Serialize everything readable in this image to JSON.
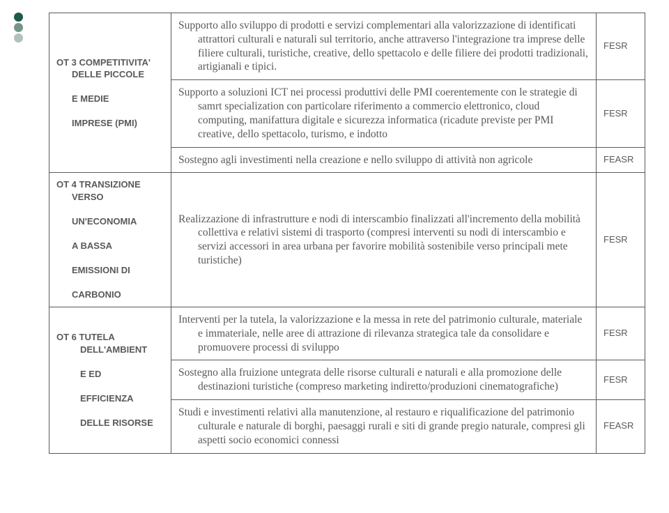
{
  "dots": [
    "#1e5a4a",
    "#739588",
    "#b0c2bb"
  ],
  "rows": [
    {
      "cat": {
        "rowspan": 3,
        "lines": [
          "OT 3 COMPETITIVITA'",
          "DELLE PICCOLE",
          "E MEDIE",
          "IMPRESE (PMI)"
        ],
        "padclass": [
          "",
          "l2",
          "l2",
          "l2"
        ]
      },
      "body": "Supporto allo sviluppo di prodotti e servizi complementari alla valorizzazione di identificati attrattori culturali e naturali sul territorio, anche attraverso l'integrazione tra imprese delle filiere culturali, turistiche, creative, dello spettacolo e delle filiere dei prodotti tradizionali, artigianali e tipici.",
      "tag": "FESR"
    },
    {
      "body": "Supporto a soluzioni ICT nei processi produttivi delle PMI coerentemente con le strategie di samrt specialization con particolare riferimento a commercio elettronico, cloud computing, manifattura digitale e sicurezza informatica (ricadute previste per PMI creative, dello spettacolo, turismo, e indotto",
      "tag": "FESR"
    },
    {
      "body": "Sostegno agli investimenti nella creazione e nello sviluppo di attività non agricole",
      "tag": "FEASR"
    },
    {
      "cat": {
        "rowspan": 1,
        "lines": [
          "OT 4 TRANSIZIONE",
          "VERSO",
          "UN'ECONOMIA",
          "A BASSA",
          "EMISSIONI DI",
          "CARBONIO"
        ],
        "padclass": [
          "",
          "l2",
          "l2",
          "l2",
          "l2",
          "l2"
        ]
      },
      "body": "Realizzazione di infrastrutture e nodi di interscambio finalizzati all'incremento della mobilità collettiva e relativi sistemi di trasporto (compresi interventi su nodi di interscambio e servizi accessori in area urbana per favorire mobilità sostenibile verso principali mete turistiche)",
      "tag": "FESR"
    },
    {
      "cat": {
        "rowspan": 3,
        "lines": [
          "OT 6 TUTELA",
          "DELL'AMBIENT",
          "E ED",
          "EFFICIENZA",
          "DELLE RISORSE"
        ],
        "padclass": [
          "",
          "l3",
          "l3",
          "l3",
          "l3"
        ]
      },
      "body": "Interventi per la tutela, la valorizzazione e la messa in rete del patrimonio culturale, materiale e immateriale, nelle aree di attrazione di rilevanza strategica tale da consolidare e promuovere processi di sviluppo",
      "tag": "FESR"
    },
    {
      "body": "Sostegno alla fruizione untegrata delle risorse culturali e naturali e alla promozione delle destinazioni turistiche (compreso marketing indiretto/produzioni cinematografiche)",
      "tag": "FESR"
    },
    {
      "body": "Studi e investimenti relativi alla manutenzione, al restauro e riqualificazione del patrimonio culturale e naturale di borghi, paesaggi rurali e siti di grande pregio naturale, compresi gli aspetti socio economici connessi",
      "tag": "FEASR"
    }
  ]
}
